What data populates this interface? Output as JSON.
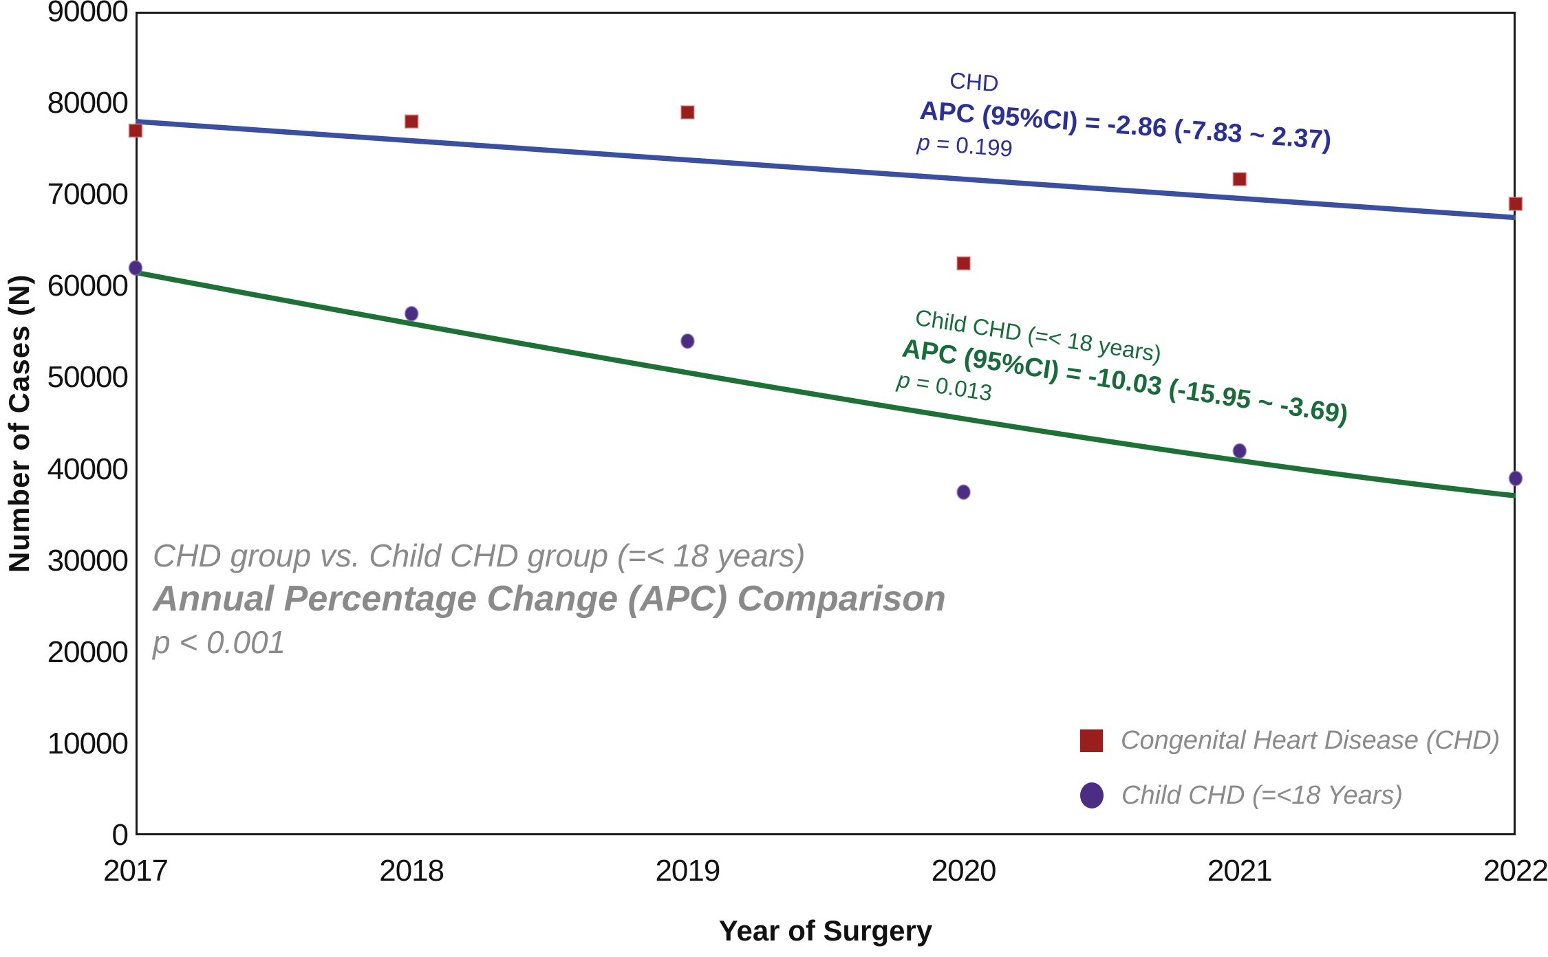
{
  "chart_data": {
    "type": "scatter",
    "xlabel": "Year of Surgery",
    "ylabel": "Number of Cases (N)",
    "x": [
      2017,
      2018,
      2019,
      2020,
      2021,
      2022
    ],
    "xlim": [
      2017,
      2022
    ],
    "ylim": [
      0,
      90000
    ],
    "y_tick_step": 10000,
    "grid": false,
    "legend_position": "bottom-right",
    "series": [
      {
        "name": "Congenital Heart Disease (CHD)",
        "marker": "square",
        "color": "#9b1e1e",
        "halo_color": "#d29090",
        "values": [
          77000,
          78000,
          79000,
          62500,
          71700,
          69000
        ]
      },
      {
        "name": "Child CHD (=<18 Years)",
        "marker": "circle",
        "color": "#4b2e83",
        "halo_color": "#8d7ab0",
        "values": [
          62000,
          57000,
          54000,
          37500,
          42000,
          39000
        ]
      }
    ],
    "trend_lines": [
      {
        "series": "Congenital Heart Disease (CHD)",
        "color": "#3b4fa0",
        "start_value": 78000,
        "end_value": 67500,
        "shape": "linear"
      },
      {
        "series": "Child CHD (=<18 Years)",
        "color": "#1d7137",
        "start_value": 61500,
        "end_value": 37100,
        "shape": "concave"
      }
    ],
    "annotations": {
      "chd": {
        "title": "CHD",
        "apc": "APC (95%CI) = -2.86 (-7.83 ~ 2.37)",
        "p_label": "p",
        "p_value": "= 0.199",
        "color": "#2b3092"
      },
      "child": {
        "title": "Child CHD (=< 18 years)",
        "apc": "APC (95%CI) = -10.03 (-15.95 ~ -3.69)",
        "p_label": "p",
        "p_value": "= 0.013",
        "color": "#1a6b3b"
      },
      "comparison": {
        "line1": "CHD group vs. Child CHD group (=< 18 years)",
        "line2": "Annual Percentage Change (APC) Comparison",
        "line3": "p < 0.001",
        "color": "#8a8a8a"
      }
    },
    "legend": {
      "items": [
        {
          "label": "Congenital Heart Disease (CHD)",
          "marker": "square",
          "color": "#9b1e1e"
        },
        {
          "label": "Child CHD (=<18 Years)",
          "marker": "circle",
          "color": "#4b2e83"
        }
      ]
    }
  }
}
